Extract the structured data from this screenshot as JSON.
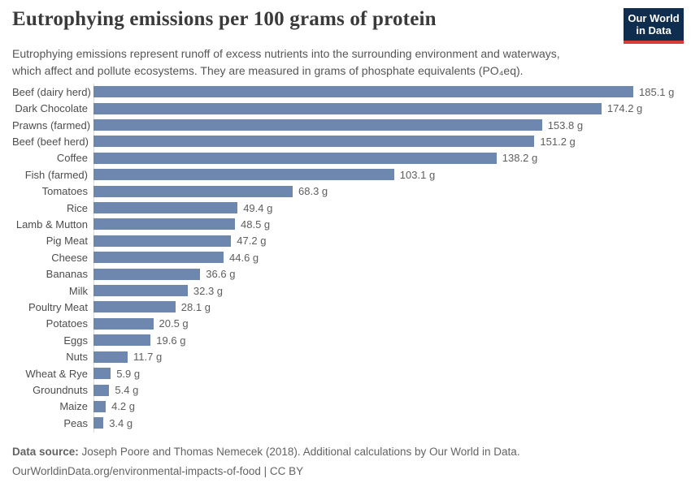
{
  "header": {
    "title": "Eutrophying emissions per 100 grams of protein",
    "subtitle": "Eutrophying emissions represent runoff of excess nutrients into the surrounding environment and waterways, which affect and pollute ecosystems. They are measured in grams of phosphate equivalents (PO₄eq).",
    "logo": {
      "line1": "Our World",
      "line2": "in Data"
    }
  },
  "chart_data": {
    "type": "bar",
    "orientation": "horizontal",
    "title": "Eutrophying emissions per 100 grams of protein",
    "xlabel": "",
    "ylabel": "",
    "unit": "grams of phosphate equivalents (PO₄eq)",
    "value_suffix": " g",
    "xlim": [
      0,
      185.1
    ],
    "grid": false,
    "legend": "none",
    "bar_color": "#6d87ae",
    "categories": [
      "Beef (dairy herd)",
      "Dark Chocolate",
      "Prawns (farmed)",
      "Beef (beef herd)",
      "Coffee",
      "Fish (farmed)",
      "Tomatoes",
      "Rice",
      "Lamb & Mutton",
      "Pig Meat",
      "Cheese",
      "Bananas",
      "Milk",
      "Poultry Meat",
      "Potatoes",
      "Eggs",
      "Nuts",
      "Wheat & Rye",
      "Groundnuts",
      "Maize",
      "Peas"
    ],
    "values": [
      185.1,
      174.2,
      153.8,
      151.2,
      138.2,
      103.1,
      68.3,
      49.4,
      48.5,
      47.2,
      44.6,
      36.6,
      32.3,
      28.1,
      20.5,
      19.6,
      11.7,
      5.9,
      5.4,
      4.2,
      3.4
    ]
  },
  "footer": {
    "source_label": "Data source:",
    "source_text": " Joseph Poore and Thomas Nemecek (2018). Additional calculations by Our World in Data.",
    "link_line": "OurWorldinData.org/environmental-impacts-of-food | CC BY"
  },
  "colors": {
    "bar": "#6d87ae",
    "axis_line": "#d8d8d8",
    "title_text": "#3a3a3a",
    "subtitle_text": "#565656",
    "logo_background": "#0f2e4f",
    "logo_accent": "#d83c34"
  }
}
